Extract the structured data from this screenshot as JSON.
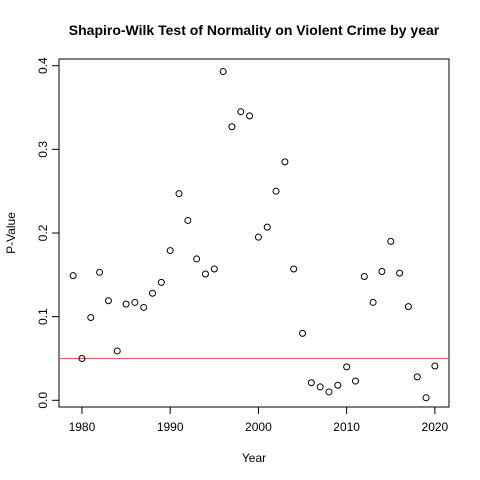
{
  "chart_data": {
    "type": "scatter",
    "title": "Shapiro-Wilk Test of Normality on Violent Crime by year",
    "xlabel": "Year",
    "ylabel": "P-Value",
    "xlim": [
      1977.4,
      2021.6
    ],
    "ylim": [
      -0.008,
      0.408
    ],
    "xticks": [
      1980,
      1990,
      2000,
      2010,
      2020
    ],
    "yticks": [
      0.0,
      0.1,
      0.2,
      0.3,
      0.4
    ],
    "xtick_labels": [
      "1980",
      "1990",
      "2000",
      "2010",
      "2020"
    ],
    "ytick_labels": [
      "0.0",
      "0.1",
      "0.2",
      "0.3",
      "0.4"
    ],
    "grid": false,
    "point_color": "#000000",
    "reference_line": {
      "y": 0.05,
      "color": "#e06666"
    },
    "x": [
      1979,
      1980,
      1981,
      1982,
      1983,
      1984,
      1985,
      1986,
      1987,
      1988,
      1989,
      1990,
      1991,
      1992,
      1993,
      1994,
      1995,
      1996,
      1997,
      1998,
      1999,
      2000,
      2001,
      2002,
      2003,
      2004,
      2005,
      2006,
      2007,
      2008,
      2009,
      2010,
      2011,
      2012,
      2013,
      2014,
      2015,
      2016,
      2017,
      2018,
      2019,
      2020
    ],
    "y": [
      0.149,
      0.05,
      0.099,
      0.153,
      0.119,
      0.059,
      0.115,
      0.117,
      0.111,
      0.128,
      0.141,
      0.179,
      0.247,
      0.215,
      0.169,
      0.151,
      0.157,
      0.393,
      0.327,
      0.345,
      0.34,
      0.195,
      0.207,
      0.25,
      0.285,
      0.157,
      0.08,
      0.021,
      0.016,
      0.01,
      0.018,
      0.04,
      0.023,
      0.148,
      0.117,
      0.154,
      0.19,
      0.152,
      0.112,
      0.028,
      0.003,
      0.041
    ]
  }
}
